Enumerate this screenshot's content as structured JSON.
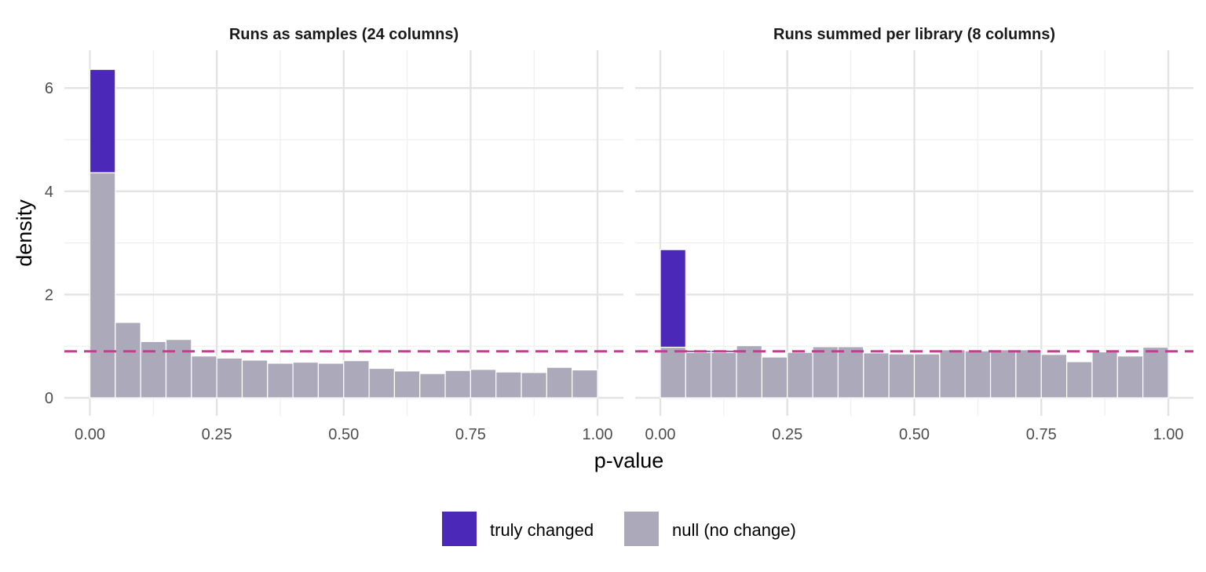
{
  "chart_data": {
    "type": "bar",
    "xlabel": "p-value",
    "ylabel": "density",
    "xlim": [
      0,
      1
    ],
    "ylim": [
      0,
      6.65
    ],
    "x_ticks": [
      "0.00",
      "0.25",
      "0.50",
      "0.75",
      "1.00"
    ],
    "y_ticks": [
      "0",
      "2",
      "4",
      "6"
    ],
    "grid": true,
    "legend_position": "bottom",
    "legend": [
      {
        "label": "truly changed",
        "color": "#4b28b8"
      },
      {
        "label": "null (no change)",
        "color": "#acaaba"
      }
    ],
    "reference_line": {
      "y": 0.9,
      "style": "dashed",
      "color": "#c0408f"
    },
    "bin_edges": [
      0,
      0.05,
      0.1,
      0.15,
      0.2,
      0.25,
      0.3,
      0.35,
      0.4,
      0.45,
      0.5,
      0.55,
      0.6,
      0.65,
      0.7,
      0.75,
      0.8,
      0.85,
      0.9,
      0.95,
      1.0
    ],
    "panels": [
      {
        "title": "Runs as samples (24 columns)",
        "series": [
          {
            "name": "null (no change)",
            "values": [
              4.36,
              1.46,
              1.09,
              1.13,
              0.81,
              0.77,
              0.73,
              0.67,
              0.69,
              0.67,
              0.72,
              0.57,
              0.52,
              0.47,
              0.53,
              0.55,
              0.5,
              0.49,
              0.59,
              0.54
            ]
          },
          {
            "name": "truly changed",
            "values": [
              2.0,
              0,
              0,
              0,
              0,
              0,
              0,
              0,
              0,
              0,
              0,
              0,
              0,
              0,
              0,
              0,
              0,
              0,
              0,
              0
            ]
          }
        ]
      },
      {
        "title": "Runs summed per library (8 columns)",
        "series": [
          {
            "name": "null (no change)",
            "values": [
              0.98,
              0.88,
              0.88,
              1.01,
              0.79,
              0.88,
              0.99,
              0.99,
              0.87,
              0.85,
              0.85,
              0.93,
              0.91,
              0.93,
              0.93,
              0.84,
              0.7,
              0.89,
              0.81,
              0.98
            ]
          },
          {
            "name": "truly changed",
            "values": [
              1.89,
              0.04,
              0.04,
              0,
              0,
              0,
              0,
              0,
              0,
              0,
              0,
              0,
              0,
              0,
              0,
              0,
              0,
              0,
              0,
              0
            ]
          }
        ]
      }
    ]
  }
}
